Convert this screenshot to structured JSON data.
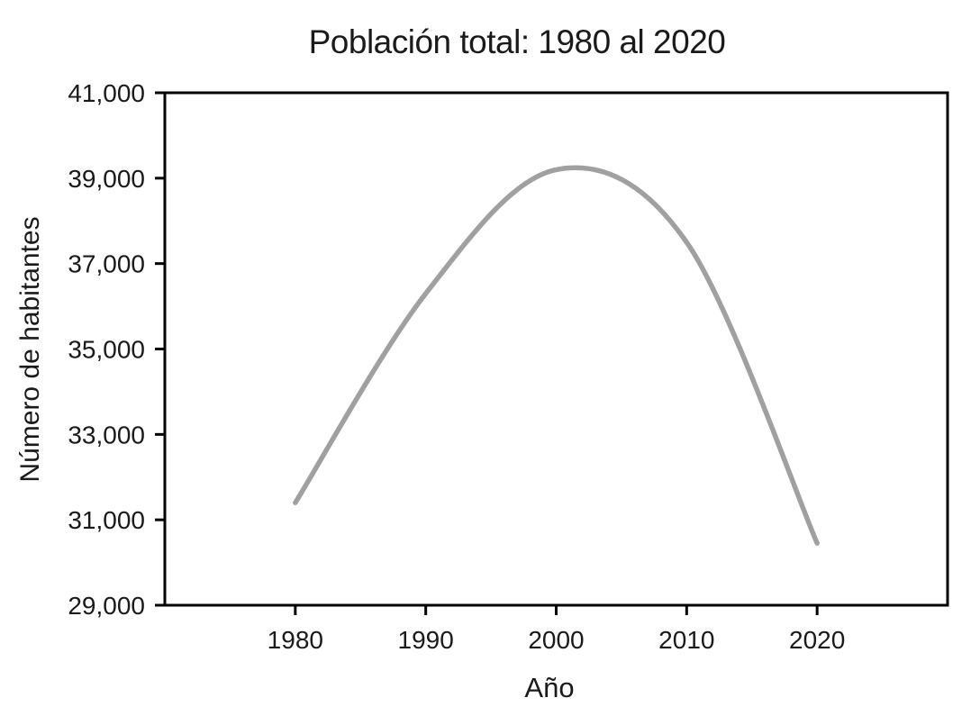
{
  "chart_data": {
    "type": "line",
    "title": "Población total: 1980 al 2020",
    "xlabel": "Año",
    "ylabel": "Número de habitantes",
    "x": [
      1980,
      1990,
      2000,
      2010,
      2020
    ],
    "series": [
      {
        "name": "Población total",
        "values": [
          31400,
          36300,
          39200,
          37500,
          30450
        ]
      }
    ],
    "xlim": [
      1970,
      2030
    ],
    "ylim": [
      29000,
      41000
    ],
    "xticks": [
      1980,
      1990,
      2000,
      2010,
      2020
    ],
    "xtick_labels": [
      "1980",
      "1990",
      "2000",
      "2010",
      "2020"
    ],
    "yticks": [
      29000,
      31000,
      33000,
      35000,
      37000,
      39000,
      41000
    ],
    "ytick_labels": [
      "29,000",
      "31,000",
      "33,000",
      "35,000",
      "37,000",
      "39,000",
      "41,000"
    ],
    "grid": false,
    "legend_position": "none",
    "curve_style": "smooth",
    "colors": {
      "line": "#a0a0a0",
      "axis": "#000000",
      "text": "#1a1a1a",
      "background": "#ffffff"
    },
    "line_width": 5.5
  }
}
